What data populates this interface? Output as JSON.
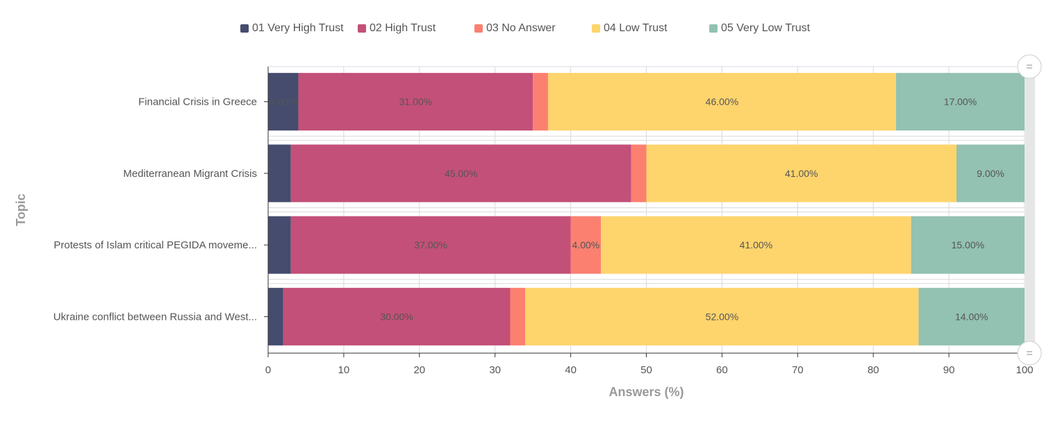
{
  "chart_data": {
    "type": "bar",
    "orientation": "horizontal",
    "stacked": true,
    "xlabel": "Answers (%)",
    "ylabel": "Topic",
    "xlim": [
      0,
      100
    ],
    "xticks": [
      0,
      10,
      20,
      30,
      40,
      50,
      60,
      70,
      80,
      90,
      100
    ],
    "grid": true,
    "legend_position": "top",
    "categories": [
      "Financial Crisis in Greece",
      "Mediterranean Migrant Crisis",
      "Protests of Islam critical PEGIDA moveme...",
      "Ukraine conflict between Russia and West..."
    ],
    "series": [
      {
        "name": "01 Very High Trust",
        "color": "#454c6e",
        "values": [
          4,
          3,
          3,
          2
        ],
        "data_labels": [
          "4.00%",
          "",
          "",
          ""
        ]
      },
      {
        "name": "02 High Trust",
        "color": "#c35078",
        "values": [
          31,
          45,
          37,
          30
        ],
        "data_labels": [
          "31.00%",
          "45.00%",
          "37.00%",
          "30.00%"
        ]
      },
      {
        "name": "03 No Answer",
        "color": "#fb8070",
        "values": [
          2,
          2,
          4,
          2
        ],
        "data_labels": [
          "",
          "",
          "4.00%",
          ""
        ]
      },
      {
        "name": "04 Low Trust",
        "color": "#fed46d",
        "values": [
          46,
          41,
          41,
          52
        ],
        "data_labels": [
          "46.00%",
          "41.00%",
          "41.00%",
          "52.00%"
        ]
      },
      {
        "name": "05 Very Low Trust",
        "color": "#93c1b2",
        "values": [
          17,
          9,
          15,
          14
        ],
        "data_labels": [
          "17.00%",
          "9.00%",
          "15.00%",
          "14.00%"
        ]
      }
    ]
  },
  "ui": {
    "scroll_handle_glyph": "="
  }
}
